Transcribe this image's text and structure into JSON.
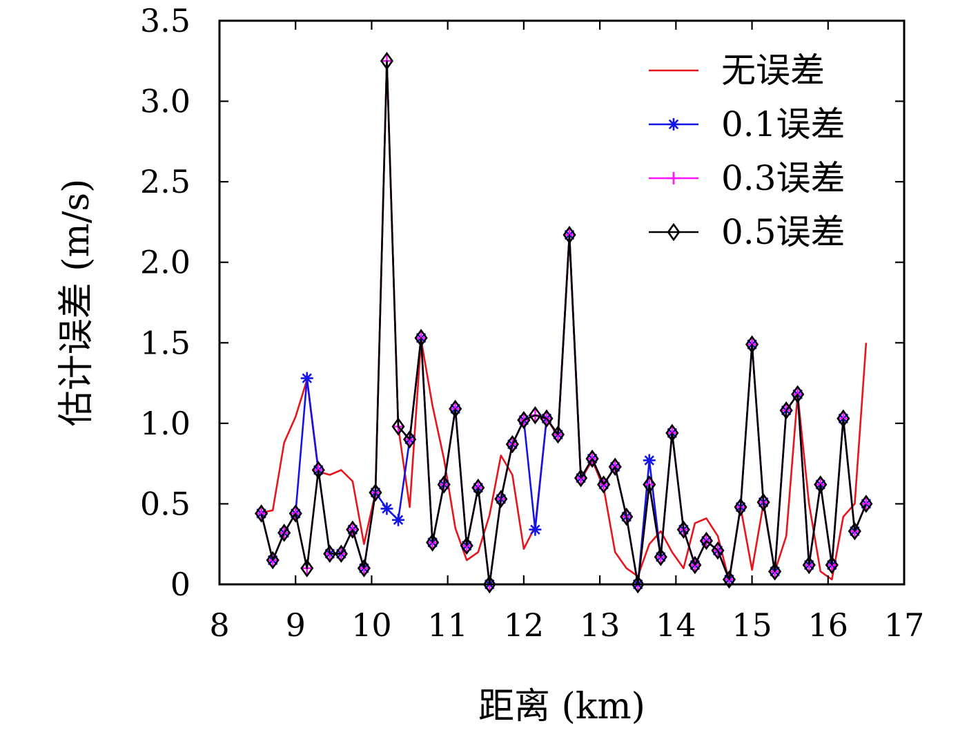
{
  "chart_data": {
    "type": "line",
    "title": "",
    "xlabel": "距离 (km)",
    "ylabel": "估计误差 (m/s)",
    "xlim": [
      8,
      17
    ],
    "ylim": [
      0,
      3.5
    ],
    "x_ticks": [
      8,
      9,
      10,
      11,
      12,
      13,
      14,
      15,
      16,
      17
    ],
    "y_ticks": [
      "0",
      "0.5",
      "1.0",
      "1.5",
      "2.0",
      "2.5",
      "3.0",
      "3.5"
    ],
    "y_tick_values": [
      0,
      0.5,
      1.0,
      1.5,
      2.0,
      2.5,
      3.0,
      3.5
    ],
    "grid": false,
    "legend_position": "top-right",
    "x": [
      8.55,
      8.7,
      8.85,
      9.0,
      9.15,
      9.3,
      9.45,
      9.6,
      9.75,
      9.9,
      10.05,
      10.2,
      10.35,
      10.5,
      10.65,
      10.8,
      10.95,
      11.1,
      11.25,
      11.4,
      11.55,
      11.7,
      11.85,
      12.0,
      12.15,
      12.3,
      12.45,
      12.6,
      12.75,
      12.9,
      13.05,
      13.2,
      13.35,
      13.5,
      13.65,
      13.8,
      13.95,
      14.1,
      14.25,
      14.4,
      14.55,
      14.7,
      14.85,
      15.0,
      15.15,
      15.3,
      15.45,
      15.6,
      15.75,
      15.9,
      16.05,
      16.2,
      16.35,
      16.5
    ],
    "series": [
      {
        "name": "无误差",
        "color": "#e8141c",
        "marker": "none",
        "x": [
          8.55,
          8.6,
          8.7,
          8.85,
          9.0,
          9.15,
          9.3,
          9.45,
          9.6,
          9.75,
          9.9,
          10.05,
          10.2,
          10.35,
          10.5,
          10.65,
          10.8,
          10.95,
          11.1,
          11.25,
          11.4,
          11.55,
          11.7,
          11.85,
          12.0,
          12.15,
          12.3,
          12.45,
          12.6,
          12.75,
          12.9,
          13.05,
          13.2,
          13.35,
          13.5,
          13.65,
          13.8,
          13.95,
          14.1,
          14.25,
          14.4,
          14.55,
          14.7,
          14.85,
          15.0,
          15.15,
          15.3,
          15.45,
          15.6,
          15.75,
          15.9,
          16.05,
          16.2,
          16.35,
          16.5
        ],
        "values": [
          0.43,
          0.45,
          0.46,
          0.88,
          1.04,
          1.27,
          0.7,
          0.68,
          0.71,
          0.64,
          0.25,
          0.57,
          3.25,
          0.98,
          0.48,
          1.52,
          1.11,
          0.78,
          0.35,
          0.15,
          0.2,
          0.43,
          0.8,
          0.68,
          0.22,
          0.36,
          1.03,
          0.92,
          2.16,
          0.65,
          0.77,
          0.6,
          0.2,
          0.1,
          0.05,
          0.25,
          0.33,
          0.2,
          0.1,
          0.38,
          0.41,
          0.3,
          0.02,
          0.48,
          0.09,
          0.5,
          0.08,
          0.3,
          1.18,
          0.5,
          0.08,
          0.03,
          0.42,
          0.5,
          1.5
        ]
      },
      {
        "name": "0.1误差",
        "color": "#1414e6",
        "marker": "asterisk",
        "values": [
          0.44,
          0.15,
          0.32,
          0.44,
          1.28,
          0.71,
          0.19,
          0.19,
          0.34,
          0.1,
          0.57,
          0.47,
          0.4,
          0.9,
          1.53,
          0.26,
          0.62,
          1.09,
          0.24,
          0.6,
          0.0,
          0.53,
          0.87,
          1.02,
          0.34,
          1.03,
          0.93,
          2.17,
          0.66,
          0.78,
          0.62,
          0.73,
          0.42,
          0.0,
          0.77,
          0.17,
          0.94,
          0.34,
          0.12,
          0.27,
          0.21,
          0.03,
          0.48,
          1.49,
          0.51,
          0.08,
          1.08,
          1.18,
          0.12,
          0.62,
          0.12,
          1.03,
          0.33,
          0.5
        ]
      },
      {
        "name": "0.3误差",
        "color": "#ff14ff",
        "marker": "plus",
        "values": [
          0.44,
          0.15,
          0.32,
          0.44,
          0.1,
          0.71,
          0.19,
          0.19,
          0.34,
          0.1,
          0.57,
          3.25,
          0.98,
          0.9,
          1.53,
          0.26,
          0.62,
          1.09,
          0.24,
          0.6,
          0.0,
          0.53,
          0.87,
          1.02,
          1.05,
          1.03,
          0.93,
          2.17,
          0.66,
          0.78,
          0.62,
          0.73,
          0.42,
          0.0,
          0.62,
          0.17,
          0.94,
          0.34,
          0.12,
          0.27,
          0.21,
          0.03,
          0.48,
          1.49,
          0.51,
          0.08,
          1.08,
          1.18,
          0.12,
          0.62,
          0.12,
          1.03,
          0.33,
          0.5
        ]
      },
      {
        "name": "0.5误差",
        "color": "#000000",
        "marker": "diamond",
        "values": [
          0.44,
          0.15,
          0.32,
          0.44,
          0.1,
          0.71,
          0.19,
          0.19,
          0.34,
          0.1,
          0.57,
          3.25,
          0.98,
          0.9,
          1.53,
          0.26,
          0.62,
          1.09,
          0.24,
          0.6,
          0.0,
          0.53,
          0.87,
          1.02,
          1.05,
          1.03,
          0.93,
          2.17,
          0.66,
          0.78,
          0.62,
          0.73,
          0.42,
          0.0,
          0.62,
          0.17,
          0.94,
          0.34,
          0.12,
          0.27,
          0.21,
          0.03,
          0.48,
          1.49,
          0.51,
          0.08,
          1.08,
          1.18,
          0.12,
          0.62,
          0.12,
          1.03,
          0.33,
          0.5
        ]
      }
    ]
  }
}
